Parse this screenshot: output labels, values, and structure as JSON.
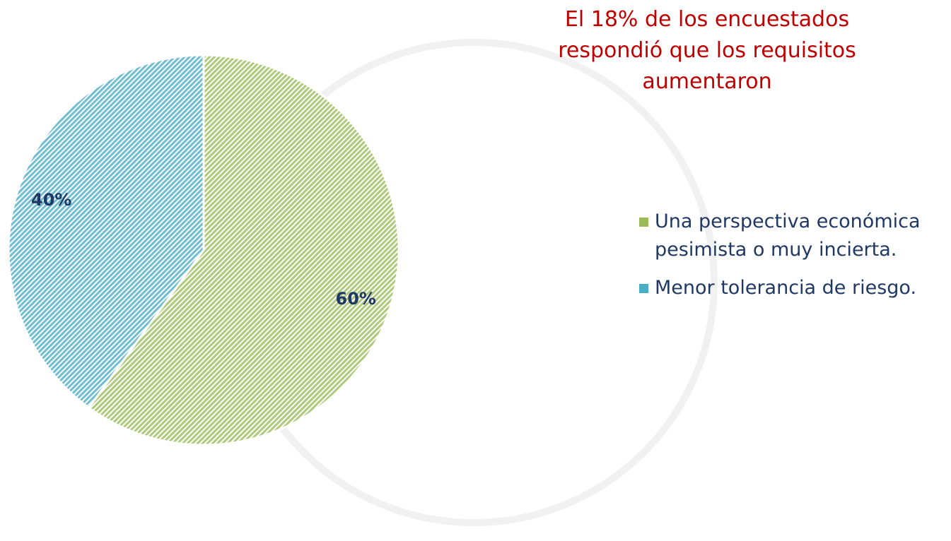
{
  "chart_data": {
    "type": "pie",
    "title": "El 18%  de los encuestados respondió que los requisitos aumentaron",
    "categories": [
      "Una perspectiva económica pesimista o muy incierta.",
      "Menor tolerancia de riesgo."
    ],
    "values": [
      60,
      40
    ],
    "value_labels": [
      "60%",
      "40%"
    ],
    "colors": [
      "#9bbb59",
      "#4bacc6"
    ],
    "legend": "right"
  }
}
